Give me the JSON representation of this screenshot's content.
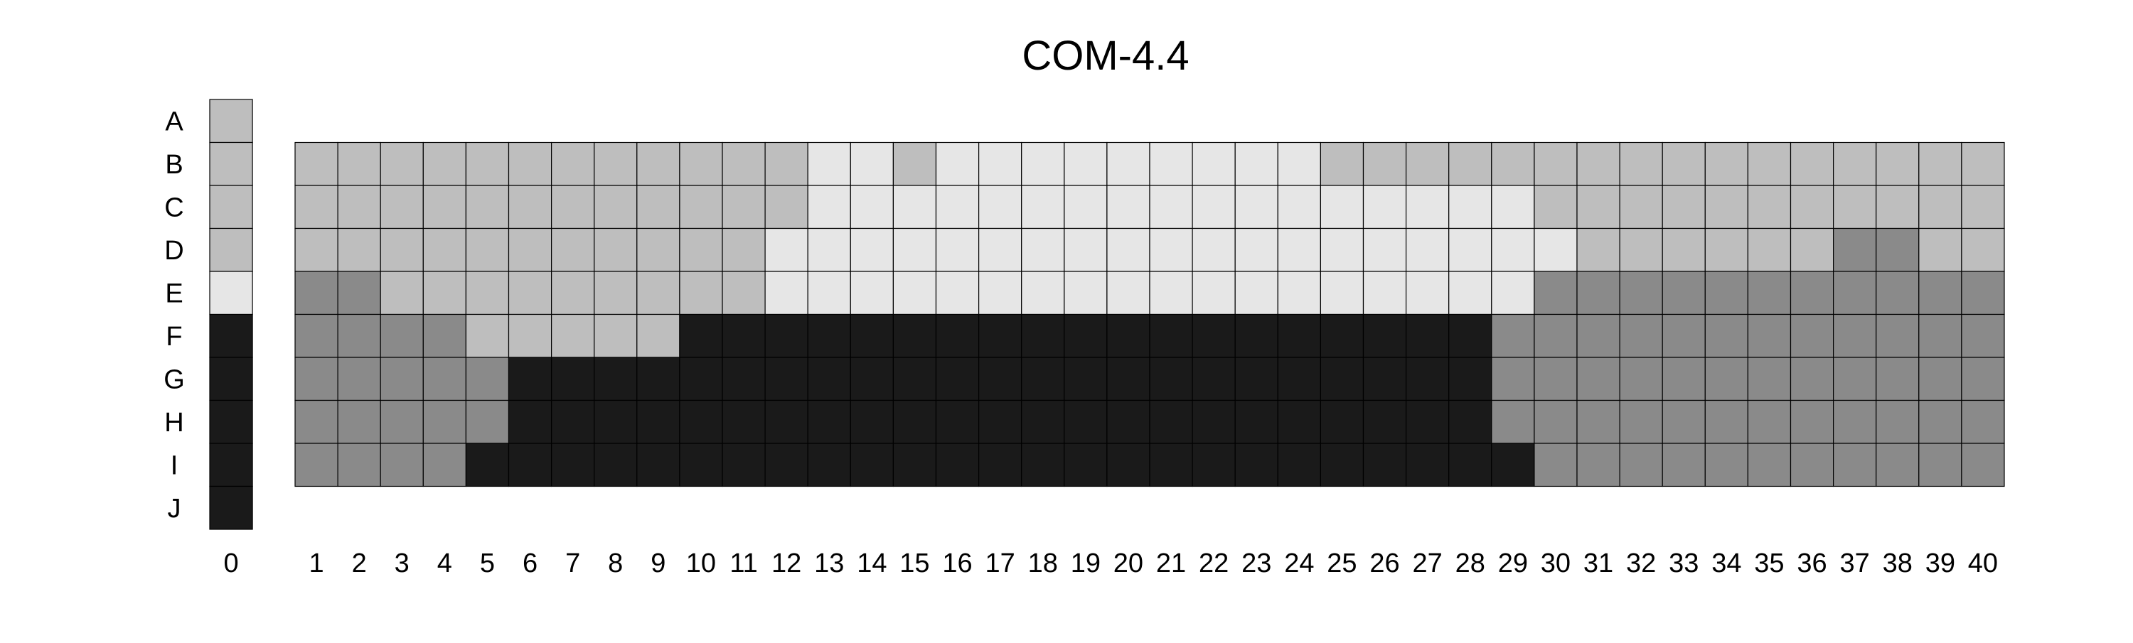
{
  "chart_data": {
    "type": "heatmap",
    "title": "COM-4.4",
    "xlabel": "",
    "ylabel": "",
    "legend": "none",
    "grid": true,
    "rows": [
      "A",
      "B",
      "C",
      "D",
      "E",
      "F",
      "G",
      "H",
      "I",
      "J"
    ],
    "reference_column": {
      "label": "0",
      "rows": [
        "A",
        "B",
        "C",
        "D",
        "E",
        "F",
        "G",
        "H",
        "I",
        "J"
      ],
      "values": [
        2,
        2,
        2,
        2,
        1,
        4,
        4,
        4,
        4,
        4
      ]
    },
    "columns": [
      "1",
      "2",
      "3",
      "4",
      "5",
      "6",
      "7",
      "8",
      "9",
      "10",
      "11",
      "12",
      "13",
      "14",
      "15",
      "16",
      "17",
      "18",
      "19",
      "20",
      "21",
      "22",
      "23",
      "24",
      "25",
      "26",
      "27",
      "28",
      "29",
      "30",
      "31",
      "32",
      "33",
      "34",
      "35",
      "36",
      "37",
      "38",
      "39",
      "40"
    ],
    "grid_rows": [
      "B",
      "C",
      "D",
      "E",
      "F",
      "G",
      "H",
      "I"
    ],
    "value_colors": {
      "1": "#e6e6e6",
      "2": "#bebebe",
      "3": "#8a8a8a",
      "4": "#1a1a1a"
    },
    "matrix": [
      [
        2,
        2,
        2,
        2,
        2,
        2,
        2,
        2,
        2,
        2,
        2,
        2,
        1,
        1,
        2,
        1,
        1,
        1,
        1,
        1,
        1,
        1,
        1,
        1,
        2,
        2,
        2,
        2,
        2,
        2,
        2,
        2,
        2,
        2,
        2,
        2,
        2,
        2,
        2,
        2
      ],
      [
        2,
        2,
        2,
        2,
        2,
        2,
        2,
        2,
        2,
        2,
        2,
        2,
        1,
        1,
        1,
        1,
        1,
        1,
        1,
        1,
        1,
        1,
        1,
        1,
        1,
        1,
        1,
        1,
        1,
        2,
        2,
        2,
        2,
        2,
        2,
        2,
        2,
        2,
        2,
        2
      ],
      [
        2,
        2,
        2,
        2,
        2,
        2,
        2,
        2,
        2,
        2,
        2,
        1,
        1,
        1,
        1,
        1,
        1,
        1,
        1,
        1,
        1,
        1,
        1,
        1,
        1,
        1,
        1,
        1,
        1,
        1,
        2,
        2,
        2,
        2,
        2,
        2,
        3,
        3,
        2,
        2
      ],
      [
        3,
        3,
        2,
        2,
        2,
        2,
        2,
        2,
        2,
        2,
        2,
        1,
        1,
        1,
        1,
        1,
        1,
        1,
        1,
        1,
        1,
        1,
        1,
        1,
        1,
        1,
        1,
        1,
        1,
        3,
        3,
        3,
        3,
        3,
        3,
        3,
        3,
        3,
        3,
        3
      ],
      [
        3,
        3,
        3,
        3,
        2,
        2,
        2,
        2,
        2,
        4,
        4,
        4,
        4,
        4,
        4,
        4,
        4,
        4,
        4,
        4,
        4,
        4,
        4,
        4,
        4,
        4,
        4,
        4,
        3,
        3,
        3,
        3,
        3,
        3,
        3,
        3,
        3,
        3,
        3,
        3
      ],
      [
        3,
        3,
        3,
        3,
        3,
        4,
        4,
        4,
        4,
        4,
        4,
        4,
        4,
        4,
        4,
        4,
        4,
        4,
        4,
        4,
        4,
        4,
        4,
        4,
        4,
        4,
        4,
        4,
        3,
        3,
        3,
        3,
        3,
        3,
        3,
        3,
        3,
        3,
        3,
        3
      ],
      [
        3,
        3,
        3,
        3,
        3,
        4,
        4,
        4,
        4,
        4,
        4,
        4,
        4,
        4,
        4,
        4,
        4,
        4,
        4,
        4,
        4,
        4,
        4,
        4,
        4,
        4,
        4,
        4,
        3,
        3,
        3,
        3,
        3,
        3,
        3,
        3,
        3,
        3,
        3,
        3
      ],
      [
        3,
        3,
        3,
        3,
        4,
        4,
        4,
        4,
        4,
        4,
        4,
        4,
        4,
        4,
        4,
        4,
        4,
        4,
        4,
        4,
        4,
        4,
        4,
        4,
        4,
        4,
        4,
        4,
        4,
        3,
        3,
        3,
        3,
        3,
        3,
        3,
        3,
        3,
        3,
        3
      ]
    ]
  }
}
